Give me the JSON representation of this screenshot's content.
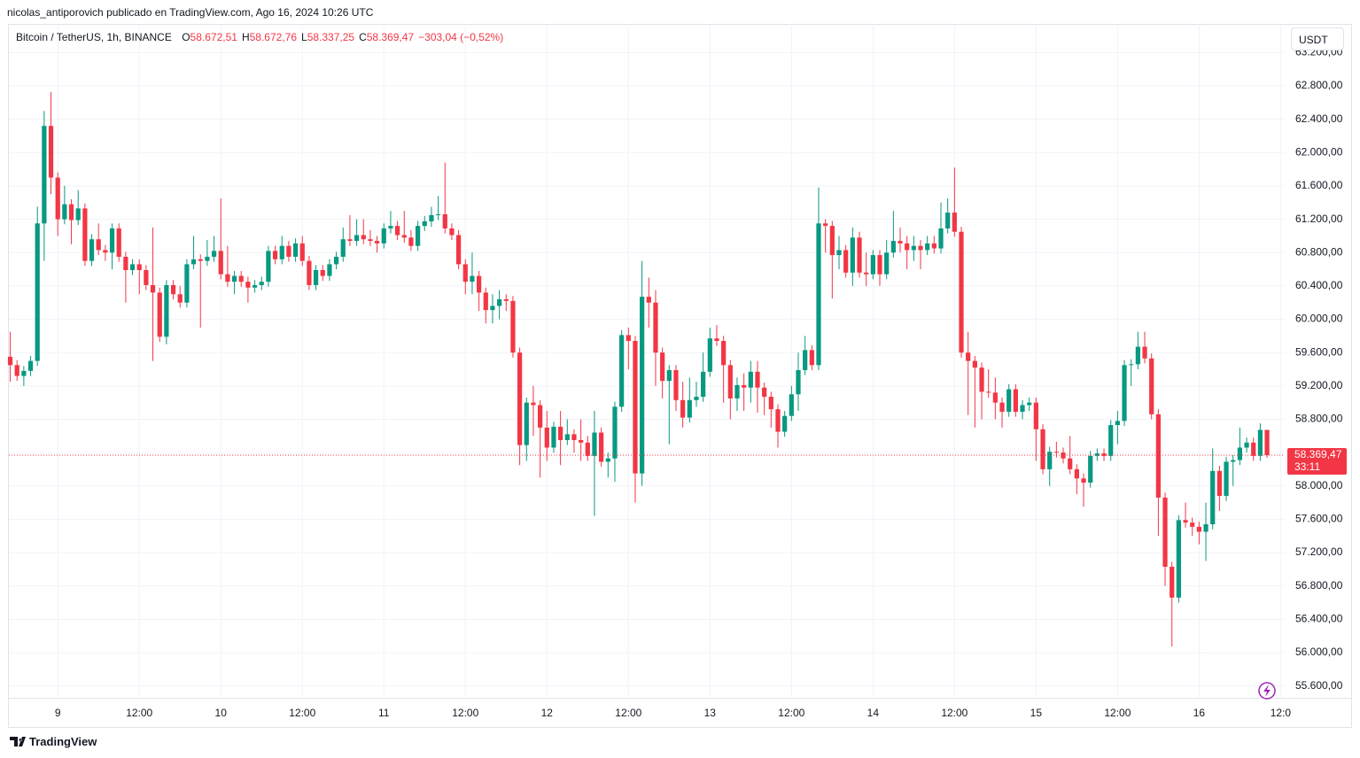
{
  "header": "nicolas_antiporovich publicado en TradingView.com, Ago 16, 2024 10:26 UTC",
  "brand": "TradingView",
  "currency_button": "USDT",
  "chart_data": {
    "type": "candlestick",
    "symbol": "Bitcoin / TetherUS, 1h, BINANCE",
    "ohlc_legend": [
      {
        "key": "O",
        "label": "58.672,51"
      },
      {
        "key": "H",
        "label": "58.672,76"
      },
      {
        "key": "L",
        "label": "58.337,25"
      },
      {
        "key": "C",
        "label": "58.369,47"
      }
    ],
    "change_label": "−303,04 (−0,52%)",
    "last_price_label": "58.369,47",
    "countdown": "33:11",
    "colors": {
      "up": "#089981",
      "down": "#f23645"
    },
    "grid": true,
    "xlim": [
      -7.2,
      180.6
    ],
    "ylim": [
      55596,
      63544
    ],
    "xticks": [
      {
        "value": 0,
        "label": "9"
      },
      {
        "value": 12,
        "label": "12:00"
      },
      {
        "value": 24,
        "label": "10"
      },
      {
        "value": 36,
        "label": "12:00"
      },
      {
        "value": 48,
        "label": "11"
      },
      {
        "value": 60,
        "label": "12:00"
      },
      {
        "value": 72,
        "label": "12"
      },
      {
        "value": 84,
        "label": "12:00"
      },
      {
        "value": 96,
        "label": "13"
      },
      {
        "value": 108,
        "label": "12:00"
      },
      {
        "value": 120,
        "label": "14"
      },
      {
        "value": 132,
        "label": "12:00"
      },
      {
        "value": 144,
        "label": "15"
      },
      {
        "value": 156,
        "label": "12:00"
      },
      {
        "value": 168,
        "label": "16"
      },
      {
        "value": 180,
        "label": "12:0"
      }
    ],
    "yticks": [
      {
        "value": 55600,
        "label": "55.600,00"
      },
      {
        "value": 56000,
        "label": "56.000,00"
      },
      {
        "value": 56400,
        "label": "56.400,00"
      },
      {
        "value": 56800,
        "label": "56.800,00"
      },
      {
        "value": 57200,
        "label": "57.200,00"
      },
      {
        "value": 57600,
        "label": "57.600,00"
      },
      {
        "value": 58000,
        "label": "58.000,00"
      },
      {
        "value": 58400,
        "label": "58.400,00"
      },
      {
        "value": 58800,
        "label": "58.800,00"
      },
      {
        "value": 59200,
        "label": "59.200,00"
      },
      {
        "value": 59600,
        "label": "59.600,00"
      },
      {
        "value": 60000,
        "label": "60.000,00"
      },
      {
        "value": 60400,
        "label": "60.400,00"
      },
      {
        "value": 60800,
        "label": "60.800,00"
      },
      {
        "value": 61200,
        "label": "61.200,00"
      },
      {
        "value": 61600,
        "label": "61.600,00"
      },
      {
        "value": 62000,
        "label": "62.000,00"
      },
      {
        "value": 62400,
        "label": "62.400,00"
      },
      {
        "value": 62800,
        "label": "62.800,00"
      },
      {
        "value": 63200,
        "label": "63.200,00"
      }
    ],
    "x": [
      -7,
      -6,
      -5,
      -4,
      -3,
      -2,
      -1,
      0,
      1,
      2,
      3,
      4,
      5,
      6,
      7,
      8,
      9,
      10,
      11,
      12,
      13,
      14,
      15,
      16,
      17,
      18,
      19,
      20,
      21,
      22,
      23,
      24,
      25,
      26,
      27,
      28,
      29,
      30,
      31,
      32,
      33,
      34,
      35,
      36,
      37,
      38,
      39,
      40,
      41,
      42,
      43,
      44,
      45,
      46,
      47,
      48,
      49,
      50,
      51,
      52,
      53,
      54,
      55,
      56,
      57,
      58,
      59,
      60,
      61,
      62,
      63,
      64,
      65,
      66,
      67,
      68,
      69,
      70,
      71,
      72,
      73,
      74,
      75,
      76,
      77,
      78,
      79,
      80,
      81,
      82,
      83,
      84,
      85,
      86,
      87,
      88,
      89,
      90,
      91,
      92,
      93,
      94,
      95,
      96,
      97,
      98,
      99,
      100,
      101,
      102,
      103,
      104,
      105,
      106,
      107,
      108,
      109,
      110,
      111,
      112,
      113,
      114,
      115,
      116,
      117,
      118,
      119,
      120,
      121,
      122,
      123,
      124,
      125,
      126,
      127,
      128,
      129,
      130,
      131,
      132,
      133,
      134,
      135,
      136,
      137,
      138,
      139,
      140,
      141,
      142,
      143,
      144,
      145,
      146,
      147,
      148,
      149,
      150,
      151,
      152,
      153,
      154,
      155,
      156,
      157,
      158,
      159,
      160,
      161,
      162,
      163,
      164,
      165,
      166,
      167,
      168,
      169,
      170,
      171,
      172,
      173,
      174,
      175,
      176,
      177,
      178
    ],
    "open": [
      59550,
      59450,
      59320,
      59380,
      59500,
      61150,
      62320,
      61700,
      61200,
      61380,
      61190,
      61330,
      60700,
      60960,
      60830,
      60800,
      61090,
      60750,
      60590,
      60660,
      60590,
      60410,
      60320,
      59790,
      60410,
      60300,
      60200,
      60660,
      60720,
      60700,
      60750,
      60820,
      60540,
      60450,
      60520,
      60450,
      60380,
      60410,
      60450,
      60820,
      60720,
      60880,
      60750,
      60910,
      60700,
      60410,
      60590,
      60520,
      60660,
      60750,
      60960,
      60940,
      61010,
      60960,
      60940,
      60910,
      61090,
      61120,
      61010,
      60980,
      60880,
      61120,
      61175,
      61250,
      61260,
      61090,
      61010,
      60660,
      60450,
      60520,
      60320,
      60110,
      60160,
      60240,
      60220,
      59600,
      58490,
      59000,
      58970,
      58700,
      58460,
      58710,
      58550,
      58620,
      58550,
      58520,
      58360,
      58640,
      58290,
      58330,
      58950,
      59810,
      59740,
      58150,
      60270,
      60200,
      59600,
      59260,
      59390,
      59030,
      58820,
      59030,
      59070,
      59370,
      59770,
      59740,
      59450,
      59050,
      59210,
      59180,
      59370,
      59180,
      59070,
      58920,
      58650,
      58840,
      59100,
      59390,
      59630,
      59450,
      61150,
      61120,
      60770,
      60830,
      60560,
      60980,
      60560,
      60540,
      60770,
      60540,
      60800,
      60940,
      60910,
      60830,
      60880,
      60830,
      60910,
      60850,
      61090,
      61280,
      61050,
      59600,
      59500,
      59420,
      59130,
      59120,
      59000,
      58890,
      59160,
      58890,
      58970,
      59000,
      58680,
      58200,
      58410,
      58400,
      58330,
      58200,
      58090,
      58040,
      58360,
      58390,
      58360,
      58730,
      58780,
      59450,
      59460,
      59670,
      59530,
      58860,
      57860,
      57030,
      56660,
      57590,
      57560,
      57510,
      57450,
      57540,
      58180,
      57880,
      58290,
      58310,
      58460,
      58520,
      58360,
      58672.51
    ],
    "high": [
      59850,
      59510,
      59440,
      59560,
      61350,
      62500,
      62725,
      61760,
      61600,
      61440,
      61550,
      61390,
      61020,
      61150,
      60890,
      61150,
      61150,
      60810,
      60720,
      60720,
      60650,
      61100,
      60380,
      60470,
      60470,
      60400,
      60720,
      61000,
      60780,
      60950,
      61000,
      61450,
      60880,
      60580,
      60580,
      60510,
      60470,
      60510,
      60880,
      60880,
      61000,
      60940,
      60970,
      61000,
      60760,
      60650,
      60650,
      60720,
      60810,
      61100,
      61250,
      61200,
      61200,
      61070,
      61000,
      61150,
      61300,
      61180,
      61300,
      61070,
      61180,
      61240,
      61350,
      61480,
      61880,
      61150,
      61070,
      60720,
      60800,
      60580,
      60380,
      60300,
      60350,
      60300,
      60280,
      59660,
      59060,
      59200,
      59030,
      58900,
      58770,
      58900,
      58800,
      58680,
      58800,
      58600,
      58900,
      58700,
      58400,
      59010,
      59870,
      59900,
      59800,
      60700,
      60500,
      60350,
      59660,
      59450,
      59450,
      59250,
      59300,
      59250,
      59600,
      59900,
      59930,
      59800,
      59510,
      59300,
      59350,
      59500,
      59500,
      59240,
      59130,
      58980,
      58900,
      59200,
      59600,
      59800,
      59690,
      61580,
      61200,
      61180,
      61000,
      60890,
      61100,
      61050,
      60800,
      60830,
      60830,
      60950,
      61300,
      61100,
      61000,
      61000,
      60950,
      61000,
      61000,
      61400,
      61450,
      61820,
      61110,
      59850,
      59560,
      59480,
      59400,
      59300,
      59060,
      59220,
      59220,
      59030,
      59060,
      59060,
      58740,
      58470,
      58530,
      58460,
      58600,
      58260,
      58150,
      58420,
      58450,
      58450,
      58790,
      58900,
      59510,
      59520,
      59850,
      59850,
      59590,
      58920,
      57920,
      57090,
      57650,
      57800,
      57620,
      57570,
      57800,
      58450,
      58240,
      58350,
      58370,
      58700,
      58580,
      58580,
      58750,
      58672.76
    ],
    "low": [
      59250,
      59260,
      59200,
      59320,
      59440,
      60700,
      61500,
      61000,
      61140,
      60900,
      61130,
      60640,
      60640,
      60770,
      60700,
      60600,
      60690,
      60200,
      60530,
      60300,
      60350,
      59500,
      59730,
      59700,
      60240,
      60140,
      60140,
      60600,
      59900,
      60640,
      60690,
      60480,
      60390,
      60300,
      60390,
      60200,
      60320,
      60350,
      60390,
      60660,
      60660,
      60690,
      60690,
      60640,
      60350,
      60350,
      60460,
      60460,
      60600,
      60690,
      60880,
      60880,
      60900,
      60880,
      60800,
      60850,
      61030,
      60950,
      60920,
      60820,
      60820,
      61060,
      61110,
      61190,
      61030,
      60950,
      60600,
      60300,
      60300,
      60100,
      59950,
      59950,
      60000,
      60100,
      59540,
      58250,
      58300,
      58600,
      58100,
      58300,
      58400,
      58250,
      58490,
      58400,
      58300,
      58300,
      57640,
      58230,
      58100,
      58050,
      58890,
      59400,
      57800,
      58000,
      59900,
      59200,
      59050,
      58500,
      58900,
      58700,
      58760,
      58950,
      59010,
      59310,
      59680,
      59000,
      58800,
      58900,
      58900,
      59000,
      58880,
      58850,
      58700,
      58460,
      58590,
      58780,
      58900,
      59330,
      59390,
      59390,
      60800,
      60250,
      60600,
      60500,
      60400,
      60500,
      60400,
      60480,
      60400,
      60480,
      60740,
      60800,
      60600,
      60700,
      60600,
      60770,
      60790,
      60790,
      61030,
      60990,
      59540,
      58850,
      58700,
      58800,
      59060,
      58800,
      58700,
      58830,
      58830,
      58800,
      58900,
      58300,
      58140,
      58000,
      58340,
      58270,
      58140,
      57900,
      57750,
      57980,
      58300,
      58300,
      58300,
      58500,
      58720,
      59200,
      59400,
      59470,
      58800,
      57400,
      56800,
      56075,
      56600,
      57500,
      57400,
      57300,
      57100,
      57480,
      57700,
      57820,
      58000,
      58250,
      58400,
      58300,
      58300,
      58337.25
    ],
    "close": [
      59450,
      59320,
      59380,
      59500,
      61150,
      62320,
      61700,
      61200,
      61380,
      61190,
      61330,
      60700,
      60960,
      60830,
      60800,
      61090,
      60750,
      60590,
      60660,
      60590,
      60410,
      60320,
      59790,
      60410,
      60300,
      60200,
      60660,
      60720,
      60700,
      60750,
      60820,
      60540,
      60450,
      60520,
      60450,
      60380,
      60410,
      60450,
      60820,
      60720,
      60880,
      60750,
      60910,
      60700,
      60410,
      60590,
      60520,
      60660,
      60750,
      60960,
      60940,
      61010,
      60960,
      60940,
      60910,
      61090,
      61120,
      61010,
      60980,
      60880,
      61120,
      61175,
      61250,
      61260,
      61090,
      61010,
      60660,
      60450,
      60520,
      60320,
      60110,
      60160,
      60240,
      60220,
      59600,
      58490,
      59000,
      58970,
      58700,
      58460,
      58710,
      58550,
      58620,
      58550,
      58520,
      58360,
      58640,
      58290,
      58330,
      58950,
      59810,
      59740,
      58150,
      60270,
      60200,
      59600,
      59260,
      59390,
      59030,
      58820,
      59030,
      59070,
      59370,
      59770,
      59740,
      59450,
      59050,
      59210,
      59180,
      59370,
      59180,
      59070,
      58920,
      58650,
      58840,
      59100,
      59390,
      59630,
      59450,
      61150,
      61120,
      60770,
      60830,
      60560,
      60980,
      60560,
      60540,
      60770,
      60540,
      60800,
      60940,
      60910,
      60830,
      60880,
      60830,
      60910,
      60850,
      61090,
      61280,
      61050,
      59600,
      59500,
      59420,
      59130,
      59120,
      59000,
      58890,
      59160,
      58890,
      58970,
      59000,
      58680,
      58200,
      58410,
      58400,
      58330,
      58200,
      58090,
      58040,
      58360,
      58390,
      58360,
      58730,
      58780,
      59450,
      59460,
      59670,
      59530,
      58860,
      57860,
      57030,
      56660,
      57590,
      57560,
      57510,
      57450,
      57540,
      58180,
      57880,
      58290,
      58310,
      58460,
      58520,
      58360,
      58672.51,
      58369.47
    ]
  }
}
